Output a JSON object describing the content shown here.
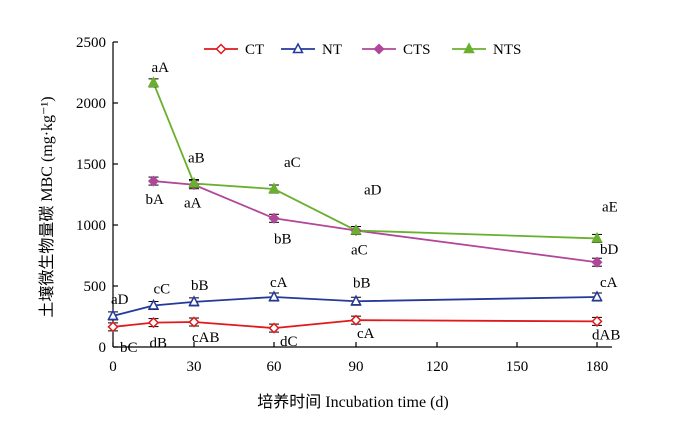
{
  "chart_data": {
    "type": "line",
    "xlabel": "培养时间 Incubation time (d)",
    "ylabel": "土壤微生物量碳 MBC (mg·kg⁻¹)",
    "ylim": [
      0,
      2500
    ],
    "grid": false,
    "legend_position": "top",
    "x_ticks": [
      "0",
      "30",
      "60",
      "90",
      "120",
      "150",
      "180"
    ],
    "y_ticks": [
      "0",
      "500",
      "1000",
      "1500",
      "2000",
      "2500"
    ],
    "series": [
      {
        "name": "CT",
        "color": "#e0191c",
        "marker": "diamond-open",
        "x": [
          0,
          15,
          30,
          60,
          90,
          180
        ],
        "y": [
          165,
          200,
          205,
          155,
          220,
          210
        ],
        "labels": [
          "bC",
          "dB",
          "cAB",
          "dC",
          "cA",
          "dAB"
        ]
      },
      {
        "name": "NT",
        "color": "#24399a",
        "marker": "triangle-open",
        "x": [
          0,
          15,
          30,
          60,
          90,
          180
        ],
        "y": [
          255,
          340,
          370,
          410,
          375,
          410
        ],
        "labels": [
          "aD",
          "cC",
          "bB",
          "cA",
          "bB",
          "cA"
        ]
      },
      {
        "name": "CTS",
        "color": "#b1479a",
        "marker": "diamond-filled",
        "x": [
          15,
          30,
          60,
          90,
          180
        ],
        "y": [
          1360,
          1330,
          1055,
          955,
          695
        ],
        "labels": [
          "bA",
          "aA",
          "bB",
          "aC",
          "bD"
        ]
      },
      {
        "name": "NTS",
        "color": "#6ab02f",
        "marker": "triangle-filled",
        "x": [
          15,
          30,
          60,
          90,
          180
        ],
        "y": [
          2165,
          1340,
          1295,
          955,
          890
        ],
        "labels": [
          "aA",
          "aB",
          "aC",
          "aD",
          "aE"
        ]
      }
    ]
  }
}
